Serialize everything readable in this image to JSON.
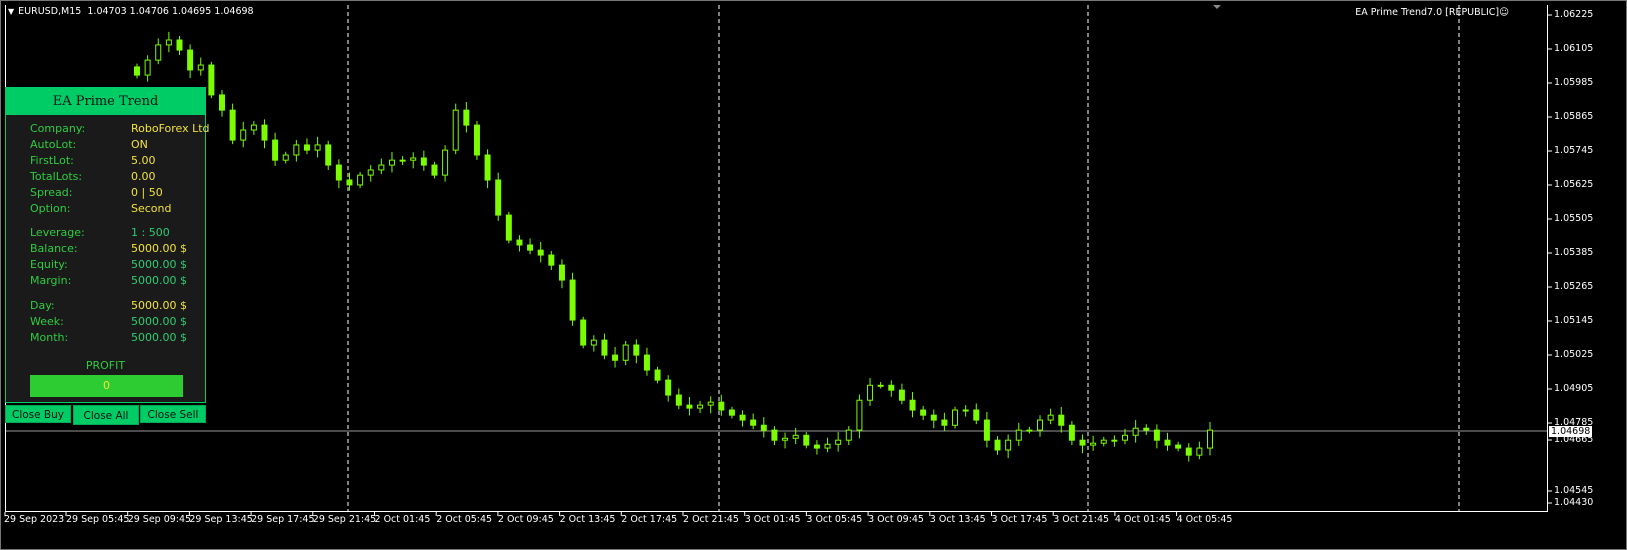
{
  "header": {
    "symbol": "EURUSD,M15",
    "ohlc": "1.04703 1.04706 1.04695 1.04698",
    "ea_label": "EA Prime Trend7.0 [REPUBLIC]",
    "ea_icon": "smiley-icon"
  },
  "panel": {
    "title": "EA Prime Trend",
    "rows": [
      {
        "label": "Company:",
        "value": "RoboForex Ltd",
        "color": "yellow"
      },
      {
        "label": "AutoLot:",
        "value": "ON",
        "color": "yellow"
      },
      {
        "label": "FirstLot:",
        "value": "5.00",
        "color": "yellow"
      },
      {
        "label": "TotalLots:",
        "value": "0.00",
        "color": "yellow"
      },
      {
        "label": "Spread:",
        "value": "0  |  50",
        "color": "yellow"
      },
      {
        "label": "Option:",
        "value": "Second",
        "color": "yellow"
      },
      {
        "label": "Leverage:",
        "value": "1 : 500",
        "color": "green"
      },
      {
        "label": "Balance:",
        "value": "5000.00 $",
        "color": "yellow"
      },
      {
        "label": "Equity:",
        "value": "5000.00 $",
        "color": "green"
      },
      {
        "label": "Margin:",
        "value": "5000.00 $",
        "color": "green"
      },
      {
        "label": "Day:",
        "value": "5000.00 $",
        "color": "yellow"
      },
      {
        "label": "Week:",
        "value": "5000.00 $",
        "color": "green"
      },
      {
        "label": "Month:",
        "value": "5000.00 $",
        "color": "green"
      }
    ],
    "profit_label": "PROFIT",
    "profit_value": "0",
    "buttons": {
      "close_buy": "Close Buy",
      "close_all": "Close All",
      "close_sell": "Close Sell"
    }
  },
  "colors": {
    "candle": "#7CFC00",
    "panel_accent": "#00cc66",
    "background": "#000000"
  },
  "chart_data": {
    "type": "candlestick",
    "symbol": "EURUSD",
    "timeframe": "M15",
    "ylim": [
      1.0443,
      1.06225
    ],
    "y_ticks": [
      "1.06225",
      "1.06105",
      "1.05985",
      "1.05865",
      "1.05745",
      "1.05625",
      "1.05505",
      "1.05385",
      "1.05265",
      "1.05145",
      "1.05025",
      "1.04905",
      "1.04785",
      "1.04665",
      "1.04545",
      "1.04430"
    ],
    "x_ticks": [
      "29 Sep 2023",
      "29 Sep 05:45",
      "29 Sep 09:45",
      "29 Sep 13:45",
      "29 Sep 17:45",
      "29 Sep 21:45",
      "2 Oct 01:45",
      "2 Oct 05:45",
      "2 Oct 09:45",
      "2 Oct 13:45",
      "2 Oct 17:45",
      "2 Oct 21:45",
      "3 Oct 01:45",
      "3 Oct 05:45",
      "3 Oct 09:45",
      "3 Oct 13:45",
      "3 Oct 17:45",
      "3 Oct 21:45",
      "4 Oct 01:45",
      "4 Oct 05:45"
    ],
    "current_price": "1.04698",
    "grid": false,
    "closes_approx": [
      1.06004,
      1.06059,
      1.06115,
      1.06133,
      1.06096,
      1.06023,
      1.06041,
      1.05931,
      1.05875,
      1.05765,
      1.05802,
      1.0582,
      1.05765,
      1.05691,
      1.0571,
      1.05747,
      1.05728,
      1.05747,
      1.05673,
      1.05618,
      1.056,
      1.05636,
      1.05655,
      1.05673,
      1.05691,
      1.05691,
      1.05699,
      1.05673,
      1.05636,
      1.05728,
      1.05875,
      1.0582,
      1.0571,
      1.05618,
      1.05489,
      1.05397,
      1.05379,
      1.0536,
      1.05342,
      1.05305,
      1.0525,
      1.05103,
      1.05011,
      1.05029,
      1.04974,
      1.04955,
      1.05011,
      1.04974,
      1.04919,
      1.04882,
      1.04827,
      1.0479,
      1.04779,
      1.0479,
      1.04801,
      1.04772,
      1.04753,
      1.04735,
      1.04716,
      1.04698,
      1.04661,
      1.04668,
      1.04679,
      1.04643,
      1.04632,
      1.04646,
      1.04661,
      1.04698,
      1.04808,
      1.04863,
      1.04863,
      1.04845,
      1.04808,
      1.04772,
      1.04753,
      1.04735,
      1.04716,
      1.04772,
      1.04772,
      1.04735,
      1.04661,
      1.04625,
      1.04661,
      1.04698,
      1.04698,
      1.04735,
      1.04753,
      1.04716,
      1.04661,
      1.04643,
      1.0465,
      1.04661,
      1.04661,
      1.04679,
      1.04705,
      1.04698,
      1.04661,
      1.04643,
      1.04632,
      1.04606,
      1.04632,
      1.04698
    ]
  }
}
